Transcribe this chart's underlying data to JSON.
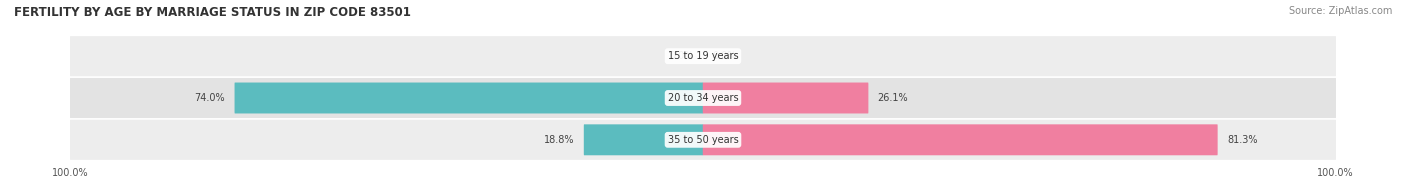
{
  "title": "FERTILITY BY AGE BY MARRIAGE STATUS IN ZIP CODE 83501",
  "source": "Source: ZipAtlas.com",
  "rows": [
    {
      "label": "15 to 19 years",
      "married": 0.0,
      "unmarried": 0.0
    },
    {
      "label": "20 to 34 years",
      "married": 74.0,
      "unmarried": 26.1
    },
    {
      "label": "35 to 50 years",
      "married": 18.8,
      "unmarried": 81.3
    }
  ],
  "married_color": "#5bbcbf",
  "unmarried_color": "#f07fa0",
  "row_bg_color_light": "#efefef",
  "row_bg_color_mid": "#e6e6e6",
  "title_fontsize": 8.5,
  "source_fontsize": 7,
  "label_fontsize": 7,
  "value_fontsize": 7,
  "axis_label_fontsize": 7,
  "legend_fontsize": 8
}
